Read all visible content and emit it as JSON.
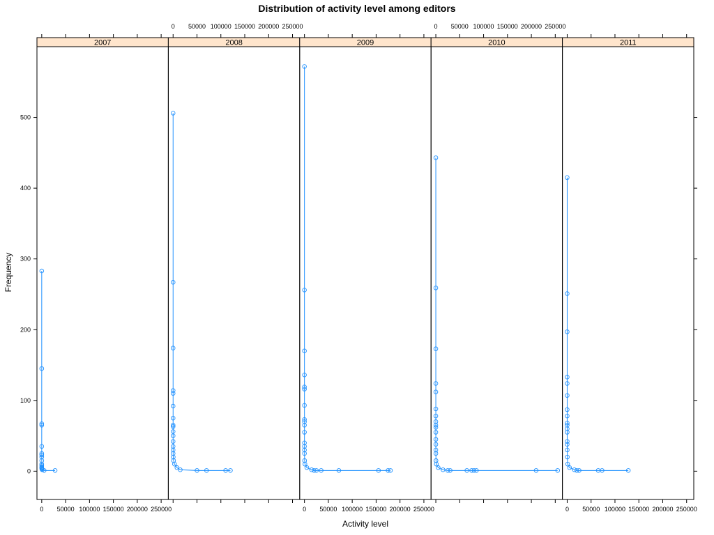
{
  "chart_data": {
    "type": "line",
    "title": "Distribution of activity level among editors",
    "xlabel": "Activity level",
    "ylabel": "Frequency",
    "xlim": [
      -10000,
      265000
    ],
    "ylim": [
      -40,
      600
    ],
    "x_ticks": [
      0,
      50000,
      100000,
      150000,
      200000,
      250000
    ],
    "y_ticks": [
      0,
      100,
      200,
      300,
      400,
      500
    ],
    "grid": false,
    "colors": {
      "series": "#1E90FF",
      "strip": "#FFE5CC",
      "frame": "#000000"
    },
    "panels": [
      {
        "name": "2007",
        "x": [
          1,
          2,
          3,
          4,
          5,
          6,
          8,
          10,
          12,
          15,
          20,
          30,
          50,
          100,
          300,
          1000,
          5000,
          28000
        ],
        "y": [
          283,
          145,
          67,
          65,
          35,
          25,
          23,
          20,
          15,
          10,
          8,
          6,
          5,
          4,
          3,
          2,
          1,
          1
        ]
      },
      {
        "name": "2008",
        "x": [
          1,
          2,
          3,
          4,
          5,
          6,
          7,
          8,
          10,
          12,
          15,
          20,
          30,
          50,
          100,
          300,
          1000,
          3000,
          8000,
          15000,
          50000,
          70000,
          110000,
          120000
        ],
        "y": [
          506,
          267,
          174,
          114,
          110,
          92,
          75,
          65,
          63,
          56,
          50,
          42,
          35,
          30,
          25,
          20,
          15,
          10,
          5,
          2,
          1,
          1,
          1,
          1
        ]
      },
      {
        "name": "2009",
        "x": [
          1,
          2,
          3,
          4,
          5,
          6,
          7,
          8,
          10,
          12,
          15,
          20,
          30,
          50,
          100,
          300,
          1000,
          5000,
          15000,
          20000,
          25000,
          35000,
          72000,
          155000,
          175000,
          180000
        ],
        "y": [
          572,
          256,
          170,
          136,
          119,
          116,
          93,
          73,
          70,
          65,
          55,
          40,
          35,
          30,
          25,
          15,
          10,
          5,
          2,
          1,
          1,
          1,
          1,
          1,
          1,
          1
        ]
      },
      {
        "name": "2010",
        "x": [
          1,
          2,
          3,
          4,
          5,
          6,
          7,
          8,
          10,
          12,
          15,
          20,
          30,
          50,
          100,
          300,
          1000,
          5000,
          15000,
          25000,
          30000,
          65000,
          75000,
          80000,
          85000,
          210000,
          255000
        ],
        "y": [
          443,
          259,
          173,
          124,
          112,
          88,
          78,
          70,
          65,
          62,
          55,
          45,
          38,
          30,
          25,
          15,
          10,
          5,
          2,
          1,
          1,
          1,
          1,
          1,
          1,
          1,
          1
        ]
      },
      {
        "name": "2011",
        "x": [
          1,
          2,
          3,
          4,
          5,
          6,
          7,
          8,
          10,
          12,
          15,
          20,
          30,
          50,
          100,
          300,
          1000,
          5000,
          15000,
          20000,
          25000,
          65000,
          73000,
          128000
        ],
        "y": [
          415,
          251,
          197,
          133,
          124,
          107,
          87,
          78,
          68,
          65,
          60,
          55,
          42,
          38,
          30,
          20,
          10,
          5,
          2,
          1,
          1,
          1,
          1,
          1
        ]
      }
    ]
  }
}
